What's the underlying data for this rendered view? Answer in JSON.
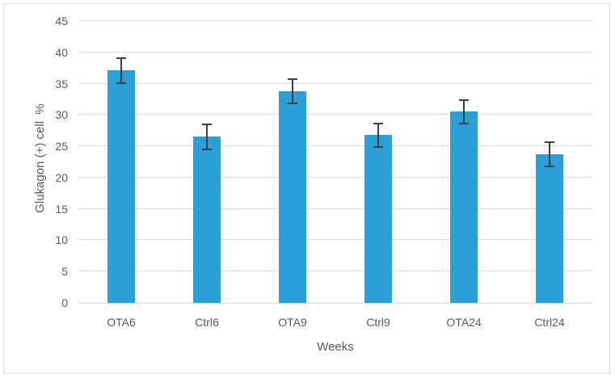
{
  "chart_data": {
    "type": "bar",
    "title": "",
    "xlabel": "Weeks",
    "ylabel": "Glukagon (+) cell  %",
    "categories": [
      "OTA6",
      "Ctrl6",
      "OTA9",
      "Ctrl9",
      "OTA24",
      "Ctrl24"
    ],
    "values": [
      37.1,
      26.5,
      33.8,
      26.8,
      30.5,
      23.7
    ],
    "error_bars": [
      2.1,
      2.1,
      2.1,
      2.0,
      2.0,
      2.1
    ],
    "ylim": [
      0,
      45
    ],
    "yticks": [
      0,
      5,
      10,
      15,
      20,
      25,
      30,
      35,
      40,
      45
    ],
    "grid": true,
    "legend_position": "none",
    "colors": {
      "bar": "#2B9FD8",
      "error_bar": "#3F3F3F",
      "gridline": "#D9D9D9",
      "axis_line": "#D9D9D9",
      "tick_text": "#595959",
      "axis_title_text": "#595959",
      "frame_border": "#D9D9D9",
      "background": "#FFFFFF"
    }
  }
}
